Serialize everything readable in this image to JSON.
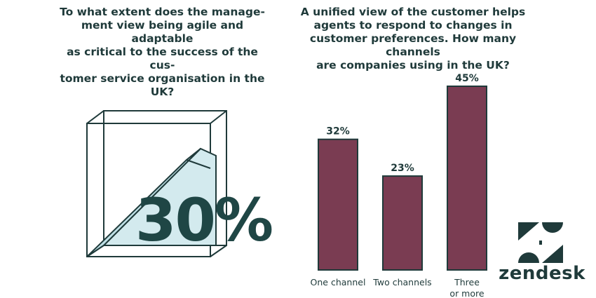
{
  "left_panel": {
    "question": "To what extent does the manage-\nment view being agile and adaptable\nas critical to the success of the cus-\ntomer service organisation in the UK?",
    "big_stat": "30%"
  },
  "right_panel": {
    "question": "A unified view of the customer helps\nagents to respond to changes in\ncustomer preferences. How many channels\nare companies using in the UK?"
  },
  "chart_data": {
    "type": "bar",
    "title": "A unified view of the customer helps agents to respond to changes in customer preferences. How many channels are companies using in the UK?",
    "categories": [
      "One channel",
      "Two channels",
      "Three\nor more"
    ],
    "values": [
      32,
      23,
      45
    ],
    "value_labels": [
      "32%",
      "23%",
      "45%"
    ],
    "unit": "%",
    "ylim": [
      0,
      45
    ],
    "grid": false,
    "bar_color": "#7a3c52"
  },
  "colors": {
    "text": "#1f3a3a",
    "stat": "#1f4645",
    "cube_fill": "#d3eaee",
    "bar": "#7a3c52"
  },
  "logo": {
    "wordmark": "zendesk",
    "icon": "zendesk-logo-icon"
  }
}
